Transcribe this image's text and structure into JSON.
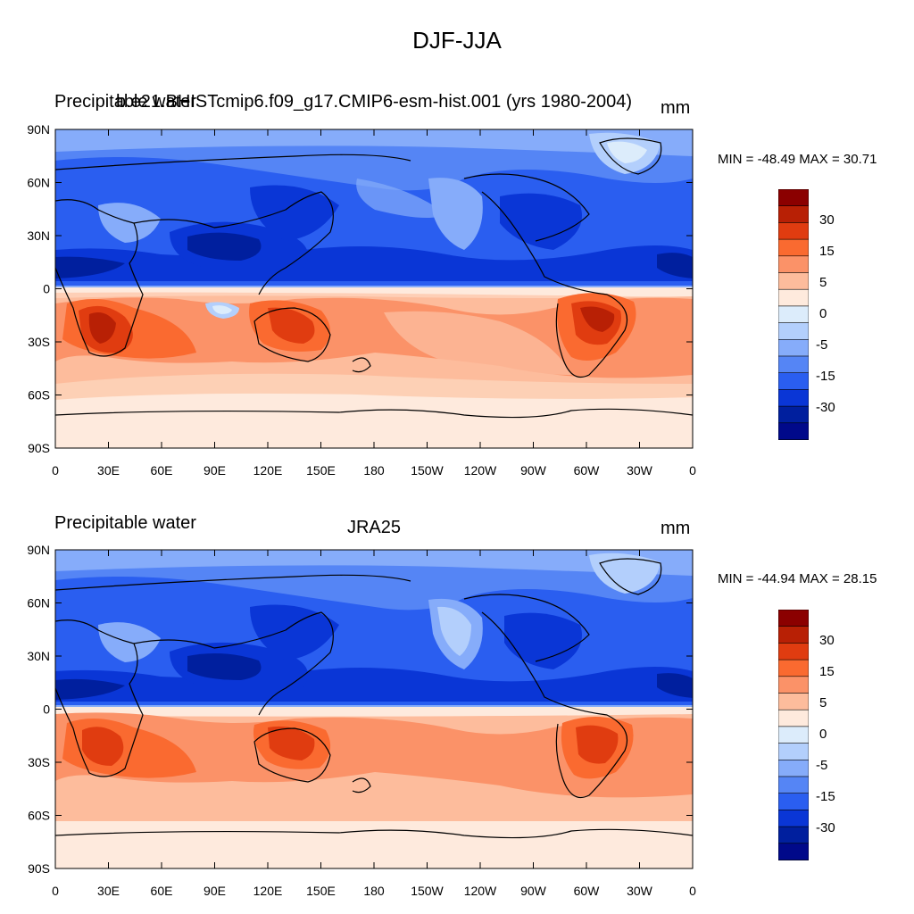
{
  "title": "DJF-JJA",
  "panels": [
    {
      "left_label": "Precipitable water",
      "center_label": "b.e21.BHISTcmip6.f09_g17.CMIP6-esm-hist.001 (yrs 1980-2004)",
      "units": "mm",
      "min_max": "MIN = -48.49 MAX =  30.71"
    },
    {
      "left_label": "Precipitable water",
      "center_label": "JRA25",
      "units": "mm",
      "min_max": "MIN = -44.94 MAX =  28.15"
    }
  ],
  "lat_ticks": [
    "90N",
    "60N",
    "30N",
    "0",
    "30S",
    "60S",
    "90S"
  ],
  "lon_ticks": [
    "0",
    "30E",
    "60E",
    "90E",
    "120E",
    "150E",
    "180",
    "150W",
    "120W",
    "90W",
    "60W",
    "30W",
    "0"
  ],
  "colorbar": {
    "colors": [
      "#8b0000",
      "#b82005",
      "#e03c10",
      "#fa6a30",
      "#fb9268",
      "#fdbc9c",
      "#feeadd",
      "#dcecfb",
      "#b3cffc",
      "#86acfa",
      "#5585f5",
      "#2a5ef0",
      "#0a36d6",
      "#001f9e",
      "#00098a"
    ],
    "labels": [
      "30",
      "15",
      "5",
      "0",
      "-5",
      "-15",
      "-30"
    ]
  }
}
